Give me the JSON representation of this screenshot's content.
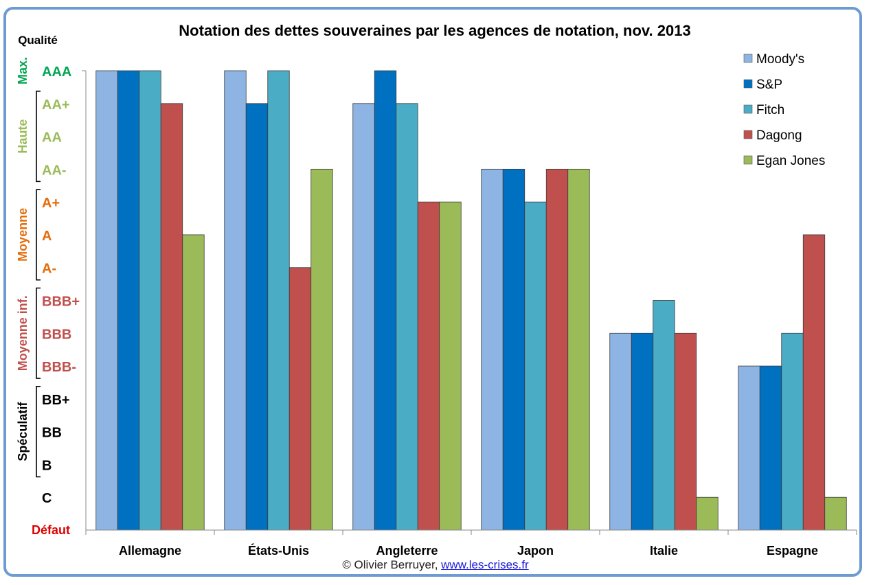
{
  "chart_data": {
    "type": "bar",
    "title": "Notation des dettes souveraines par les agences de notation, nov. 2013",
    "ylabel": "Qualité",
    "categories": [
      "Allemagne",
      "États-Unis",
      "Angleterre",
      "Japon",
      "Italie",
      "Espagne"
    ],
    "y_ticks": [
      "AAA",
      "AA+",
      "AA",
      "AA-",
      "A+",
      "A",
      "A-",
      "BBB+",
      "BBB",
      "BBB-",
      "BB+",
      "BB",
      "B",
      "C"
    ],
    "y_bottom_label": "Défaut",
    "y_range": [
      0,
      14
    ],
    "y_value_note": "Value = rating step above Défaut: C=1, B=2, BB=3, BB+=4, BBB-=5, BBB=6, BBB+=7, A-=8, A=9, A+=10, AA-=11, AA=12, AA+=13, AAA=14",
    "groups": [
      {
        "label": "Max.",
        "color": "#00a651",
        "from": "AAA",
        "to": "AAA"
      },
      {
        "label": "Haute",
        "color": "#9bbb59",
        "from": "AA+",
        "to": "AA-"
      },
      {
        "label": "Moyenne",
        "color": "#e46c0a",
        "from": "A+",
        "to": "A-"
      },
      {
        "label": "Moyenne inf.",
        "color": "#c0504d",
        "from": "BBB+",
        "to": "BBB-"
      },
      {
        "label": "Spéculatif",
        "color": "#000000",
        "from": "BB+",
        "to": "B"
      }
    ],
    "series": [
      {
        "name": "Moody's",
        "color": "#8eb4e3",
        "values": [
          14,
          14,
          13,
          11,
          6,
          5
        ]
      },
      {
        "name": "S&P",
        "color": "#0070c0",
        "values": [
          14,
          13,
          14,
          11,
          6,
          5
        ]
      },
      {
        "name": "Fitch",
        "color": "#4bacc6",
        "values": [
          14,
          14,
          13,
          10,
          7,
          6
        ]
      },
      {
        "name": "Dagong",
        "color": "#c0504d",
        "values": [
          13,
          8,
          10,
          11,
          6,
          9
        ]
      },
      {
        "name": "Egan Jones",
        "color": "#9bbb59",
        "values": [
          9,
          11,
          10,
          11,
          1,
          1
        ]
      }
    ],
    "grid": false,
    "legend_position": "top-right"
  },
  "credit": {
    "text": "© Olivier Berruyer, ",
    "link": "www.les-crises.fr"
  }
}
